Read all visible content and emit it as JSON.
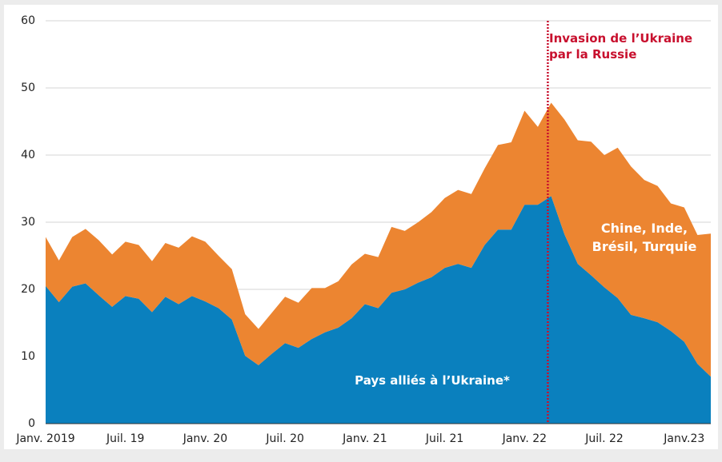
{
  "chart_data": {
    "type": "stacked_area",
    "categories": [
      "Janv. 2019",
      null,
      null,
      null,
      null,
      null,
      "Juil. 19",
      null,
      null,
      null,
      null,
      null,
      "Janv. 20",
      null,
      null,
      null,
      null,
      null,
      "Juil. 20",
      null,
      null,
      null,
      null,
      null,
      "Janv. 21",
      null,
      null,
      null,
      null,
      null,
      "Juil. 21",
      null,
      null,
      null,
      null,
      null,
      "Janv. 22",
      null,
      null,
      null,
      null,
      null,
      "Juil. 22",
      null,
      null,
      null,
      null,
      null,
      "Janv.23",
      null,
      null
    ],
    "series": [
      {
        "name": "Pays alliés à l’Ukraine*",
        "color": "#0a80be",
        "values": [
          20.5,
          18.1,
          20.4,
          20.9,
          19.1,
          17.4,
          19.0,
          18.6,
          16.6,
          18.9,
          17.8,
          19.0,
          18.2,
          17.2,
          15.5,
          10.1,
          8.7,
          10.4,
          12.0,
          11.3,
          12.6,
          13.6,
          14.3,
          15.7,
          17.8,
          17.2,
          19.5,
          20.0,
          21.0,
          21.8,
          23.2,
          23.8,
          23.2,
          26.6,
          28.9,
          28.9,
          32.6,
          32.6,
          33.9,
          28.2,
          23.8,
          22.1,
          20.3,
          18.7,
          16.2,
          15.7,
          15.1,
          13.8,
          12.2,
          8.9,
          7.0
        ]
      },
      {
        "name": "Chine, Inde, Brésil, Turquie",
        "color": "#ec8531",
        "values": [
          7.3,
          6.2,
          7.4,
          8.1,
          8.2,
          7.8,
          8.1,
          8.0,
          7.6,
          8.0,
          8.4,
          8.9,
          8.9,
          7.8,
          7.5,
          6.2,
          5.4,
          6.1,
          6.9,
          6.7,
          7.6,
          6.6,
          6.9,
          8.0,
          7.5,
          7.6,
          9.8,
          8.7,
          9.0,
          9.7,
          10.4,
          11.0,
          11.0,
          11.4,
          12.6,
          13.0,
          14.0,
          11.6,
          13.9,
          17.1,
          18.4,
          19.9,
          19.7,
          22.4,
          22.1,
          20.6,
          20.3,
          19.0,
          20.0,
          19.2,
          21.3
        ]
      }
    ],
    "ylim": [
      0,
      60
    ],
    "yticks": [
      0,
      10,
      20,
      30,
      40,
      50,
      60
    ],
    "grid": true,
    "annotation": {
      "text": "Invasion de l’Ukraine par la Russie",
      "color": "#c8102e"
    }
  }
}
